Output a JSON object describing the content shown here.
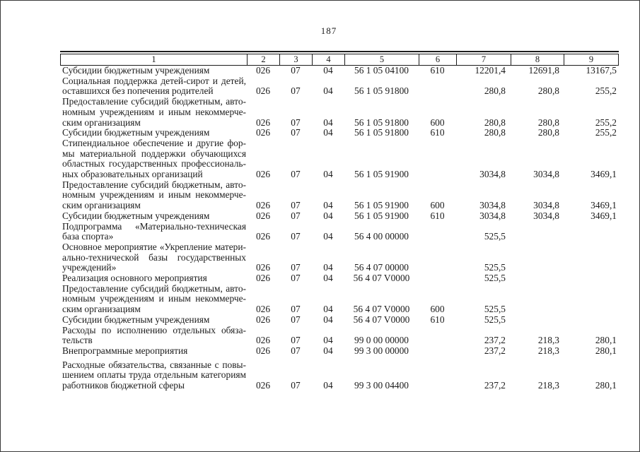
{
  "page": {
    "number": "187"
  },
  "table": {
    "header_columns": [
      "1",
      "2",
      "3",
      "4",
      "5",
      "6",
      "7",
      "8",
      "9"
    ],
    "rows": [
      {
        "desc": [
          "Субсидии бюджетным учреждениям"
        ],
        "c2": "026",
        "c3": "07",
        "c4": "04",
        "c5": "56 1 05 04100",
        "c6": "610",
        "c7": "12201,4",
        "c8": "12691,8",
        "c9": "13167,5",
        "gap_before": false
      },
      {
        "desc": [
          "Социальная поддержка детей-сирот и детей,",
          "оставшихся без попечения родителей"
        ],
        "c2": "026",
        "c3": "07",
        "c4": "04",
        "c5": "56 1 05 91800",
        "c6": "",
        "c7": "280,8",
        "c8": "280,8",
        "c9": "255,2",
        "gap_before": false
      },
      {
        "desc": [
          "Предоставление субсидий бюджетным, авто-",
          "номным учреждениям и иным некоммерче-",
          "ским организациям"
        ],
        "c2": "026",
        "c3": "07",
        "c4": "04",
        "c5": "56 1 05 91800",
        "c6": "600",
        "c7": "280,8",
        "c8": "280,8",
        "c9": "255,2",
        "gap_before": false
      },
      {
        "desc": [
          "Субсидии бюджетным учреждениям"
        ],
        "c2": "026",
        "c3": "07",
        "c4": "04",
        "c5": "56 1 05 91800",
        "c6": "610",
        "c7": "280,8",
        "c8": "280,8",
        "c9": "255,2",
        "gap_before": false
      },
      {
        "desc": [
          "Стипендиальное обеспечение и другие фор-",
          "мы материальной поддержки обучающихся",
          "областных государственных профессиональ-",
          "ных образовательных организаций"
        ],
        "c2": "026",
        "c3": "07",
        "c4": "04",
        "c5": "56 1 05 91900",
        "c6": "",
        "c7": "3034,8",
        "c8": "3034,8",
        "c9": "3469,1",
        "gap_before": false
      },
      {
        "desc": [
          "Предоставление субсидий бюджетным, авто-",
          "номным учреждениям и иным некоммерче-",
          "ским организациям"
        ],
        "c2": "026",
        "c3": "07",
        "c4": "04",
        "c5": "56 1 05 91900",
        "c6": "600",
        "c7": "3034,8",
        "c8": "3034,8",
        "c9": "3469,1",
        "gap_before": false
      },
      {
        "desc": [
          "Субсидии бюджетным учреждениям"
        ],
        "c2": "026",
        "c3": "07",
        "c4": "04",
        "c5": "56 1 05 91900",
        "c6": "610",
        "c7": "3034,8",
        "c8": "3034,8",
        "c9": "3469,1",
        "gap_before": false
      },
      {
        "desc": [
          "Подпрограмма «Материально-техническая",
          "база спорта»"
        ],
        "c2": "026",
        "c3": "07",
        "c4": "04",
        "c5": "56 4 00 00000",
        "c6": "",
        "c7": "525,5",
        "c8": "",
        "c9": "",
        "gap_before": false
      },
      {
        "desc": [
          "Основное мероприятие «Укрепление матери-",
          "ально-технической базы государственных",
          "учреждений»"
        ],
        "c2": "026",
        "c3": "07",
        "c4": "04",
        "c5": "56 4 07 00000",
        "c6": "",
        "c7": "525,5",
        "c8": "",
        "c9": "",
        "gap_before": false
      },
      {
        "desc": [
          "Реализация основного мероприятия"
        ],
        "c2": "026",
        "c3": "07",
        "c4": "04",
        "c5": "56 4 07 V0000",
        "c6": "",
        "c7": "525,5",
        "c8": "",
        "c9": "",
        "gap_before": false
      },
      {
        "desc": [
          "Предоставление субсидий бюджетным, авто-",
          "номным учреждениям и иным некоммерче-",
          "ским организациям"
        ],
        "c2": "026",
        "c3": "07",
        "c4": "04",
        "c5": "56 4 07 V0000",
        "c6": "600",
        "c7": "525,5",
        "c8": "",
        "c9": "",
        "gap_before": false
      },
      {
        "desc": [
          "Субсидии бюджетным учреждениям"
        ],
        "c2": "026",
        "c3": "07",
        "c4": "04",
        "c5": "56 4 07 V0000",
        "c6": "610",
        "c7": "525,5",
        "c8": "",
        "c9": "",
        "gap_before": false
      },
      {
        "desc": [
          "Расходы по исполнению отдельных обяза-",
          "тельств"
        ],
        "c2": "026",
        "c3": "07",
        "c4": "04",
        "c5": "99 0 00 00000",
        "c6": "",
        "c7": "237,2",
        "c8": "218,3",
        "c9": "280,1",
        "gap_before": false
      },
      {
        "desc": [
          "Внепрограммные мероприятия"
        ],
        "c2": "026",
        "c3": "07",
        "c4": "04",
        "c5": "99 3 00 00000",
        "c6": "",
        "c7": "237,2",
        "c8": "218,3",
        "c9": "280,1",
        "gap_before": false
      },
      {
        "desc": [
          "Расходные обязательства, связанные с повы-",
          "шением оплаты труда отдельным категориям",
          "работников бюджетной сферы"
        ],
        "c2": "026",
        "c3": "07",
        "c4": "04",
        "c5": "99 3 00 04400",
        "c6": "",
        "c7": "237,2",
        "c8": "218,3",
        "c9": "280,1",
        "gap_before": true
      }
    ]
  }
}
